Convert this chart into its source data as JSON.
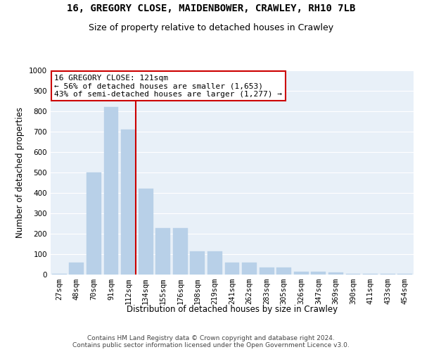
{
  "title_line1": "16, GREGORY CLOSE, MAIDENBOWER, CRAWLEY, RH10 7LB",
  "title_line2": "Size of property relative to detached houses in Crawley",
  "xlabel": "Distribution of detached houses by size in Crawley",
  "ylabel": "Number of detached properties",
  "categories": [
    "27sqm",
    "48sqm",
    "70sqm",
    "91sqm",
    "112sqm",
    "134sqm",
    "155sqm",
    "176sqm",
    "198sqm",
    "219sqm",
    "241sqm",
    "262sqm",
    "283sqm",
    "305sqm",
    "326sqm",
    "347sqm",
    "369sqm",
    "390sqm",
    "411sqm",
    "433sqm",
    "454sqm"
  ],
  "values": [
    5,
    60,
    500,
    820,
    710,
    420,
    228,
    228,
    115,
    115,
    58,
    58,
    33,
    33,
    14,
    14,
    10,
    5,
    5,
    5,
    5
  ],
  "bar_color": "#b8d0e8",
  "bar_edgecolor": "#b8d0e8",
  "vline_color": "#cc0000",
  "annotation_text": "16 GREGORY CLOSE: 121sqm\n← 56% of detached houses are smaller (1,653)\n43% of semi-detached houses are larger (1,277) →",
  "annotation_box_color": "#ffffff",
  "annotation_box_edgecolor": "#cc0000",
  "ylim": [
    0,
    1000
  ],
  "yticks": [
    0,
    100,
    200,
    300,
    400,
    500,
    600,
    700,
    800,
    900,
    1000
  ],
  "bg_color": "#e8f0f8",
  "footer_text": "Contains HM Land Registry data © Crown copyright and database right 2024.\nContains public sector information licensed under the Open Government Licence v3.0.",
  "title_fontsize": 10,
  "subtitle_fontsize": 9,
  "axis_label_fontsize": 8.5,
  "tick_fontsize": 7.5,
  "annotation_fontsize": 8,
  "footer_fontsize": 6.5
}
